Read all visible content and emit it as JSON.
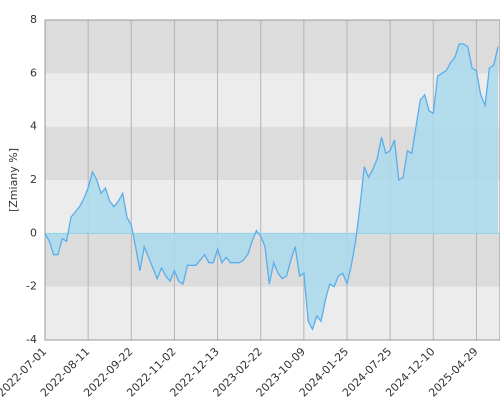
{
  "chart_data": {
    "type": "area",
    "y_label": "[Zmiany %]",
    "categories": [
      "2022-07-01",
      null,
      null,
      null,
      null,
      null,
      null,
      null,
      null,
      null,
      "2022-08-11",
      null,
      null,
      null,
      null,
      null,
      null,
      null,
      null,
      null,
      "2022-09-22",
      null,
      null,
      null,
      null,
      null,
      null,
      null,
      null,
      null,
      "2022-11-02",
      null,
      null,
      null,
      null,
      null,
      null,
      null,
      null,
      null,
      "2022-12-13",
      null,
      null,
      null,
      null,
      null,
      null,
      null,
      null,
      null,
      "2023-02-22",
      null,
      null,
      null,
      null,
      null,
      null,
      null,
      null,
      null,
      "2023-10-09",
      null,
      null,
      null,
      null,
      null,
      null,
      null,
      null,
      null,
      "2024-01-25",
      null,
      null,
      null,
      null,
      null,
      null,
      null,
      null,
      null,
      "2024-07-25",
      null,
      null,
      null,
      null,
      null,
      null,
      null,
      null,
      null,
      "2024-12-10",
      null,
      null,
      null,
      null,
      null,
      null,
      null,
      null,
      null,
      "2025-04-29",
      null,
      null,
      null,
      null,
      null
    ],
    "values": [
      0,
      -0.3,
      -0.8,
      -0.8,
      -0.2,
      -0.3,
      0.6,
      0.8,
      1.0,
      1.3,
      1.7,
      2.3,
      2.0,
      1.5,
      1.7,
      1.2,
      1.0,
      1.2,
      1.5,
      0.6,
      0.3,
      -0.5,
      -1.4,
      -0.5,
      -0.9,
      -1.3,
      -1.7,
      -1.3,
      -1.6,
      -1.8,
      -1.4,
      -1.8,
      -1.9,
      -1.2,
      -1.2,
      -1.2,
      -1.0,
      -0.8,
      -1.1,
      -1.1,
      -0.6,
      -1.1,
      -0.9,
      -1.1,
      -1.1,
      -1.1,
      -1.0,
      -0.8,
      -0.3,
      0.1,
      -0.1,
      -0.5,
      -1.9,
      -1.1,
      -1.5,
      -1.7,
      -1.6,
      -1.0,
      -0.5,
      -1.6,
      -1.5,
      -3.3,
      -3.6,
      -3.1,
      -3.3,
      -2.5,
      -1.9,
      -2.0,
      -1.6,
      -1.5,
      -1.9,
      -1.2,
      -0.3,
      1.0,
      2.5,
      2.1,
      2.4,
      2.8,
      3.6,
      3.0,
      3.1,
      3.5,
      2.0,
      2.1,
      3.1,
      3.0,
      4.0,
      5.0,
      5.2,
      4.6,
      4.5,
      5.9,
      6.0,
      6.1,
      6.4,
      6.6,
      7.1,
      7.1,
      7.0,
      6.2,
      6.1,
      5.2,
      4.8,
      6.2,
      6.3,
      7.0
    ],
    "color": "#5aaeeb",
    "area_color": "#a9d9ec",
    "ylim": [
      -4,
      8
    ],
    "yticks": [
      -4,
      -2,
      0,
      2,
      4,
      6,
      8
    ],
    "bands": [
      "#ececec",
      "#dcdcdc"
    ],
    "grid": true
  }
}
